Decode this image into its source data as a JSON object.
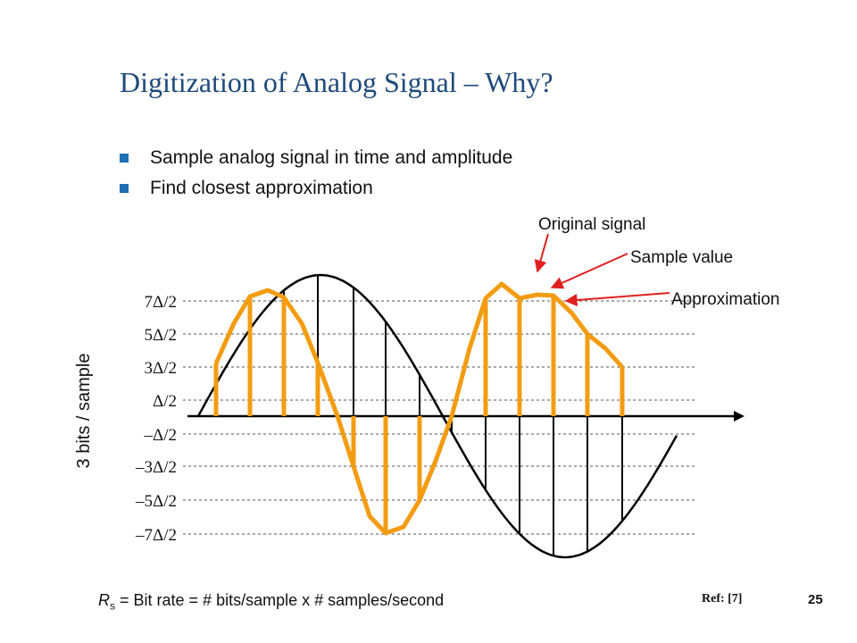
{
  "slide": {
    "title": "Digitization of Analog Signal – Why?",
    "bullets": [
      "Sample analog signal in time and amplitude",
      "Find closest approximation"
    ],
    "page_number": "25",
    "reference": "Ref: [7]",
    "formula": {
      "symbol": "R",
      "subscript": "s",
      "text": " = Bit rate = # bits/sample x # samples/second"
    }
  },
  "diagram": {
    "y_axis_label": "3 bits / sample",
    "level_labels": [
      "7Δ/2",
      "5Δ/2",
      "3Δ/2",
      "Δ/2",
      "–Δ/2",
      "–3Δ/2",
      "–5Δ/2",
      "–7Δ/2"
    ],
    "annotations": {
      "original": "Original signal",
      "sample": "Sample value",
      "approximation": "Approximation"
    },
    "colors": {
      "signal": "#000000",
      "approximation": "#f39c12",
      "arrow": "#e02020",
      "title": "#1f4a7a",
      "bullet": "#1f6fb3"
    }
  }
}
